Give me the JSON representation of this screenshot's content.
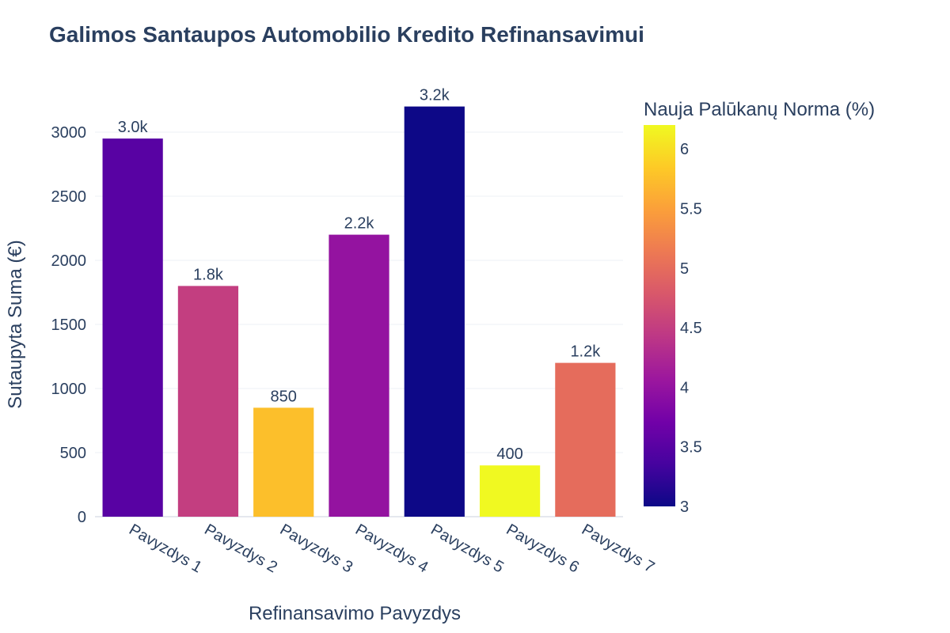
{
  "chart_data": {
    "type": "bar",
    "title": "Galimos Santaupos Automobilio Kredito Refinansavimui",
    "xlabel": "Refinansavimo Pavyzdys",
    "ylabel": "Sutaupyta Suma (€)",
    "categories": [
      "Pavyzdys 1",
      "Pavyzdys 2",
      "Pavyzdys 3",
      "Pavyzdys 4",
      "Pavyzdys 5",
      "Pavyzdys 6",
      "Pavyzdys 7"
    ],
    "values": [
      2950,
      1800,
      850,
      2200,
      3200,
      400,
      1200
    ],
    "data_labels": [
      "3.0k",
      "1.8k",
      "850",
      "2.2k",
      "3.2k",
      "400",
      "1.2k"
    ],
    "color_values": [
      3.5,
      4.5,
      5.75,
      4.0,
      3.0,
      6.2,
      5.0
    ],
    "ylim": [
      0,
      3200
    ],
    "yticks": [
      0,
      500,
      1000,
      1500,
      2000,
      2500,
      3000
    ],
    "grid": true,
    "colorbar": {
      "title": "Nauja Palūkanų Norma (%)",
      "range": [
        3,
        6.2
      ],
      "ticks": [
        "3",
        "3.5",
        "4",
        "4.5",
        "5",
        "5.5",
        "6"
      ],
      "colorscale": "plasma",
      "colors": [
        "#0d0887",
        "#46039f",
        "#7201a8",
        "#9c179e",
        "#bd3786",
        "#d8576b",
        "#ed7953",
        "#fb9f3a",
        "#fdca26",
        "#f0f921"
      ]
    }
  }
}
